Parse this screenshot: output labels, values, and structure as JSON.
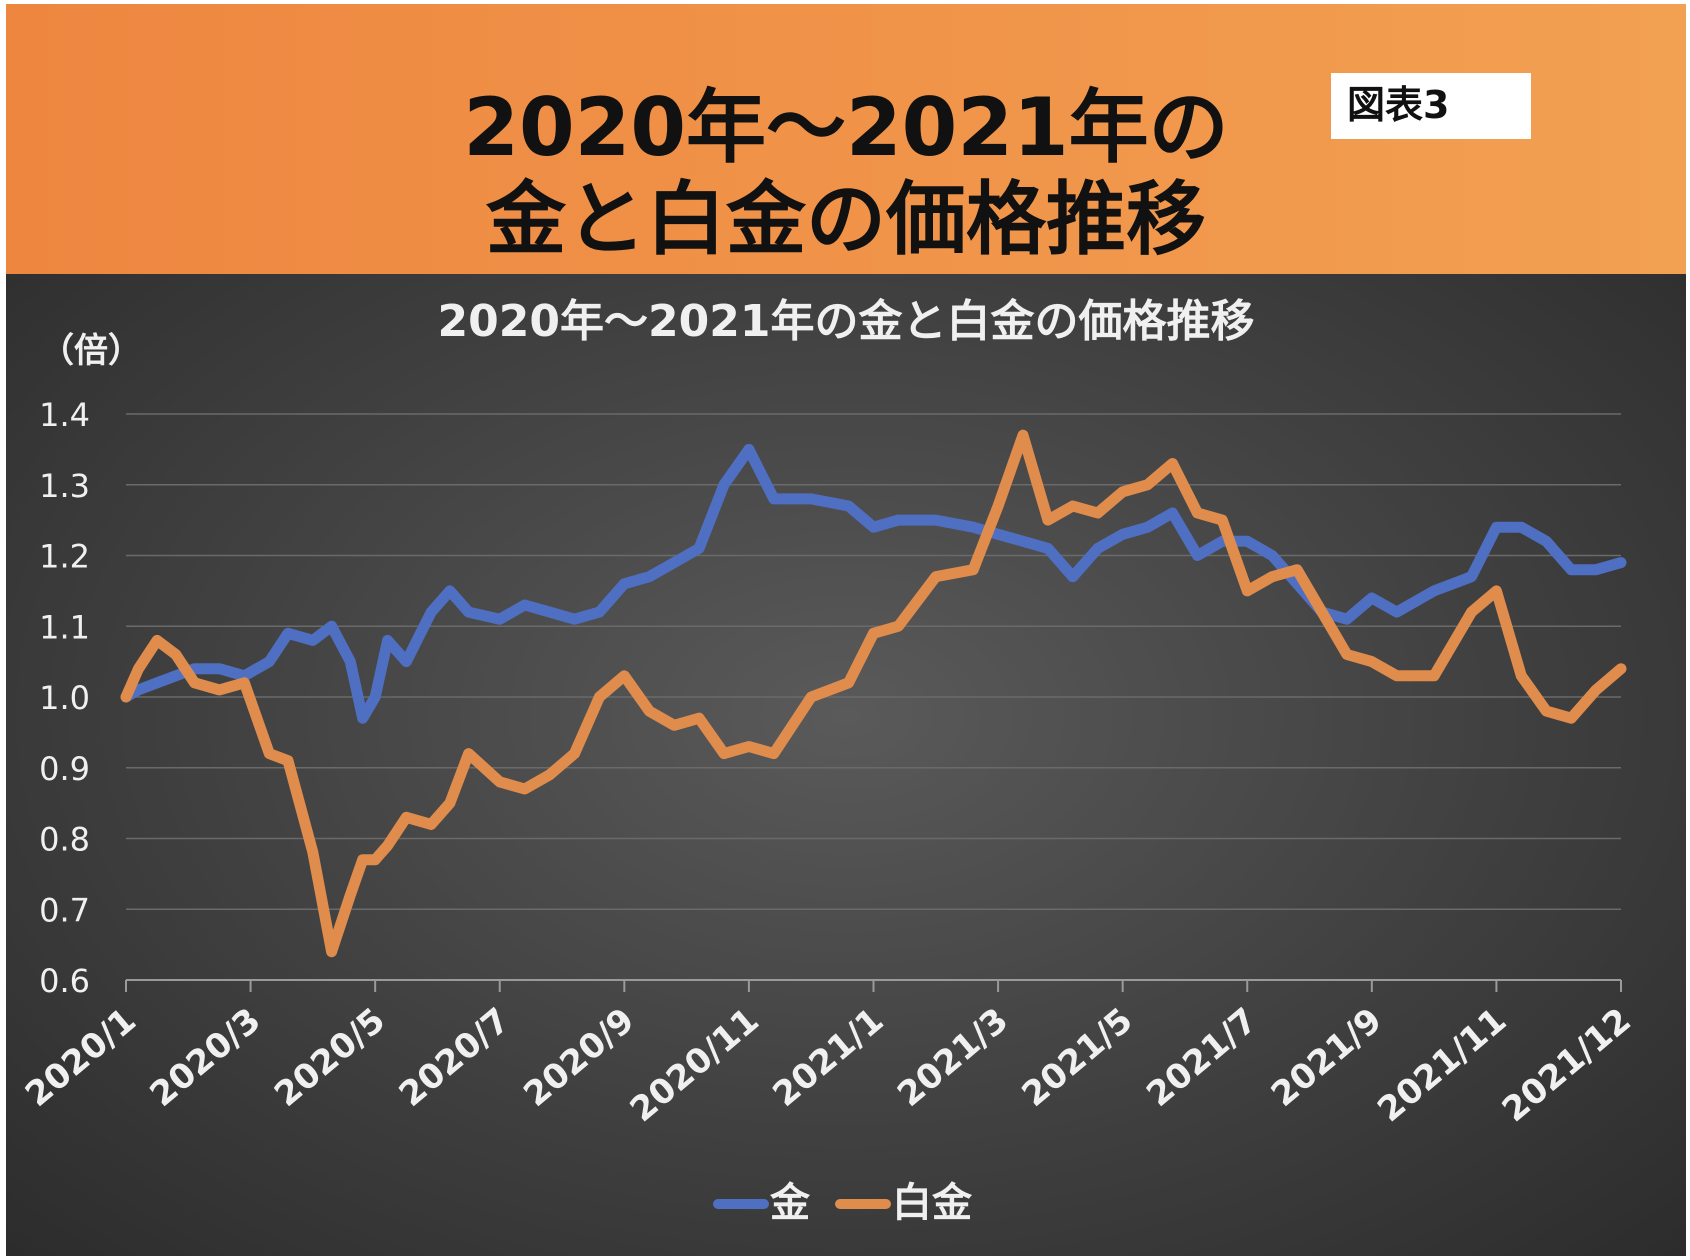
{
  "header": {
    "title_line1": "2020年〜2021年の",
    "title_line2": "金と白金の価格推移",
    "badge": "図表3"
  },
  "colors": {
    "gold": "#4f6fc2",
    "platinum": "#df8c4c",
    "header_bg": "#f09048"
  },
  "chart_data": {
    "type": "line",
    "title": "2020年～2021年の金と白金の価格推移",
    "ylabel": "（倍）",
    "xlabel": "",
    "ylim": [
      0.6,
      1.4
    ],
    "yticks": [
      "0.6",
      "0.7",
      "0.8",
      "0.9",
      "1.0",
      "1.1",
      "1.2",
      "1.3",
      "1.4"
    ],
    "xticks": [
      "2020/1",
      "2020/3",
      "2020/5",
      "2020/7",
      "2020/9",
      "2020/11",
      "2021/1",
      "2021/3",
      "2021/5",
      "2021/7",
      "2021/9",
      "2021/11",
      "2021/12"
    ],
    "grid": true,
    "legend_position": "bottom",
    "series": [
      {
        "name": "金",
        "color": "#4f6fc2",
        "x": [
          0,
          0.1,
          0.25,
          0.4,
          0.55,
          0.75,
          0.95,
          1.15,
          1.3,
          1.5,
          1.65,
          1.8,
          1.9,
          2.0,
          2.1,
          2.25,
          2.45,
          2.6,
          2.75,
          3.0,
          3.2,
          3.4,
          3.6,
          3.8,
          4.0,
          4.2,
          4.4,
          4.6,
          4.8,
          5.0,
          5.2,
          5.5,
          5.8,
          6.0,
          6.2,
          6.5,
          6.8,
          7.0,
          7.2,
          7.4,
          7.6,
          7.8,
          8.0,
          8.2,
          8.4,
          8.6,
          8.8,
          9.0,
          9.2,
          9.4,
          9.6,
          9.8,
          10.0,
          10.2,
          10.5,
          10.8,
          11.0,
          11.2,
          11.4,
          11.6,
          11.8,
          12.0
        ],
        "values": [
          1.0,
          1.01,
          1.02,
          1.03,
          1.04,
          1.04,
          1.03,
          1.05,
          1.09,
          1.08,
          1.1,
          1.05,
          0.97,
          1.0,
          1.08,
          1.05,
          1.12,
          1.15,
          1.12,
          1.11,
          1.13,
          1.12,
          1.11,
          1.12,
          1.16,
          1.17,
          1.19,
          1.21,
          1.3,
          1.35,
          1.28,
          1.28,
          1.27,
          1.24,
          1.25,
          1.25,
          1.24,
          1.23,
          1.22,
          1.21,
          1.17,
          1.21,
          1.23,
          1.24,
          1.26,
          1.2,
          1.22,
          1.22,
          1.2,
          1.16,
          1.12,
          1.11,
          1.14,
          1.12,
          1.15,
          1.17,
          1.24,
          1.24,
          1.22,
          1.18,
          1.18,
          1.19
        ]
      },
      {
        "name": "白金",
        "color": "#df8c4c",
        "x": [
          0,
          0.1,
          0.25,
          0.4,
          0.55,
          0.75,
          0.95,
          1.15,
          1.3,
          1.5,
          1.65,
          1.8,
          1.9,
          2.0,
          2.1,
          2.25,
          2.45,
          2.6,
          2.75,
          3.0,
          3.2,
          3.4,
          3.6,
          3.8,
          4.0,
          4.2,
          4.4,
          4.6,
          4.8,
          5.0,
          5.2,
          5.5,
          5.8,
          6.0,
          6.2,
          6.5,
          6.8,
          7.0,
          7.2,
          7.4,
          7.6,
          7.8,
          8.0,
          8.2,
          8.4,
          8.6,
          8.8,
          9.0,
          9.2,
          9.4,
          9.6,
          9.8,
          10.0,
          10.2,
          10.5,
          10.8,
          11.0,
          11.2,
          11.4,
          11.6,
          11.8,
          12.0
        ],
        "values": [
          1.0,
          1.04,
          1.08,
          1.06,
          1.02,
          1.01,
          1.02,
          0.92,
          0.91,
          0.78,
          0.64,
          0.72,
          0.77,
          0.77,
          0.79,
          0.83,
          0.82,
          0.85,
          0.92,
          0.88,
          0.87,
          0.89,
          0.92,
          1.0,
          1.03,
          0.98,
          0.96,
          0.97,
          0.92,
          0.93,
          0.92,
          1.0,
          1.02,
          1.09,
          1.1,
          1.17,
          1.18,
          1.27,
          1.37,
          1.25,
          1.27,
          1.26,
          1.29,
          1.3,
          1.33,
          1.26,
          1.25,
          1.15,
          1.17,
          1.18,
          1.12,
          1.06,
          1.05,
          1.03,
          1.03,
          1.12,
          1.15,
          1.03,
          0.98,
          0.97,
          1.01,
          1.04
        ]
      }
    ]
  }
}
